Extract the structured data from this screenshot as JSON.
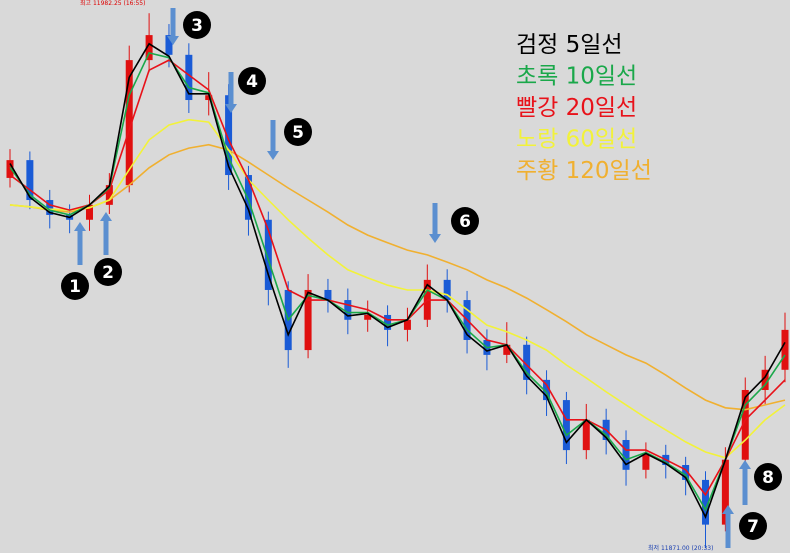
{
  "chart_data": {
    "type": "candlestick",
    "categories": [
      null,
      null,
      null,
      null,
      null,
      null,
      null,
      null,
      null,
      null,
      null,
      null,
      null,
      null,
      null,
      null,
      null,
      null,
      null,
      null,
      null,
      null,
      null,
      null,
      null,
      null,
      null,
      null,
      null,
      null,
      null,
      null,
      null,
      null,
      null,
      null,
      null,
      null,
      null,
      null
    ],
    "open": [
      11948.0,
      11951.7,
      11943.4,
      11940.3,
      11939.3,
      11942.4,
      11946.5,
      11972.5,
      11977.7,
      11973.6,
      11964.2,
      11965.2,
      11948.6,
      11939.3,
      11924.7,
      11912.2,
      11924.7,
      11922.6,
      11918.5,
      11919.5,
      11916.4,
      11918.5,
      11926.8,
      11922.6,
      11914.3,
      11911.2,
      11913.3,
      11906.0,
      11901.8,
      11891.4,
      11897.7,
      11893.5,
      11887.3,
      11890.4,
      11888.3,
      11885.2,
      11875.9,
      11889.4,
      11903.9,
      11908.1
    ],
    "high": [
      11954.0,
      11953.5,
      11945.5,
      11942.5,
      11944.5,
      11949.0,
      11975.5,
      11982.25,
      11980.0,
      11976.0,
      11970.0,
      11967.5,
      11950.5,
      11941.0,
      11926.5,
      11928.0,
      11927.0,
      11925.0,
      11922.5,
      11921.5,
      11921.0,
      11930.0,
      11929.0,
      11924.5,
      11916.5,
      11918.0,
      11915.0,
      11908.0,
      11903.5,
      11901.0,
      11900.0,
      11895.5,
      11893.0,
      11892.5,
      11890.0,
      11887.0,
      11892.0,
      11906.5,
      11911.0,
      11920.0
    ],
    "low": [
      11946.0,
      11941.5,
      11937.5,
      11936.5,
      11937.0,
      11940.5,
      11945.0,
      11970.0,
      11971.0,
      11961.5,
      11961.0,
      11945.5,
      11936.0,
      11921.5,
      11908.5,
      11910.5,
      11920.0,
      11915.5,
      11916.0,
      11913.0,
      11914.0,
      11917.0,
      11920.0,
      11911.5,
      11908.0,
      11909.5,
      11903.0,
      11898.5,
      11888.5,
      11889.5,
      11890.5,
      11884.0,
      11885.5,
      11885.5,
      11882.0,
      11871.0,
      11874.5,
      11887.5,
      11901.0,
      11905.5
    ],
    "close": [
      11951.7,
      11943.4,
      11940.3,
      11939.3,
      11942.4,
      11946.5,
      11972.5,
      11977.7,
      11973.6,
      11964.2,
      11965.2,
      11948.6,
      11939.3,
      11924.7,
      11912.2,
      11924.7,
      11922.6,
      11918.5,
      11919.5,
      11916.4,
      11918.5,
      11926.8,
      11922.6,
      11914.3,
      11911.2,
      11913.3,
      11906.0,
      11901.8,
      11891.4,
      11897.7,
      11893.5,
      11887.3,
      11890.4,
      11888.3,
      11885.2,
      11875.9,
      11889.4,
      11903.9,
      11908.1,
      11916.4
    ],
    "up_color": "#e01010",
    "down_color": "#1a5bd6",
    "series": [
      {
        "name": "검정 5일선",
        "color": "#000000",
        "values": [
          11951.0,
          11944.0,
          11940.8,
          11939.8,
          11942.4,
          11946.3,
          11968.9,
          11975.9,
          11973.3,
          11965.5,
          11965.5,
          11950.4,
          11941.4,
          11927.9,
          11915.4,
          11924.2,
          11922.6,
          11919.3,
          11919.8,
          11916.9,
          11918.5,
          11925.8,
          11922.6,
          11915.4,
          11912.0,
          11913.3,
          11906.8,
          11902.6,
          11893.0,
          11897.7,
          11894.0,
          11888.4,
          11890.7,
          11888.6,
          11885.7,
          11877.5,
          11889.4,
          11902.4,
          11906.6,
          11913.8
        ]
      },
      {
        "name": "초록 10일선",
        "color": "#1aa84a",
        "values": [
          11950.2,
          11944.5,
          11941.3,
          11940.3,
          11942.4,
          11946.0,
          11965.2,
          11974.0,
          11973.0,
          11966.8,
          11965.7,
          11952.2,
          11943.4,
          11931.0,
          11918.5,
          11923.6,
          11922.6,
          11920.0,
          11920.0,
          11917.4,
          11918.5,
          11924.7,
          11922.6,
          11916.4,
          11912.7,
          11913.3,
          11907.5,
          11903.4,
          11894.5,
          11897.7,
          11894.5,
          11889.4,
          11890.9,
          11888.8,
          11886.2,
          11879.0,
          11889.4,
          11900.8,
          11905.0,
          11911.2
        ]
      },
      {
        "name": "빨강 20일선",
        "color": "#e8121a",
        "values": [
          11948.6,
          11945.5,
          11942.4,
          11941.3,
          11942.4,
          11945.5,
          11958.0,
          11970.4,
          11972.5,
          11969.4,
          11966.3,
          11955.9,
          11947.6,
          11937.2,
          11924.7,
          11922.6,
          11922.6,
          11921.6,
          11920.6,
          11918.5,
          11918.5,
          11922.6,
          11922.6,
          11918.5,
          11914.3,
          11913.3,
          11909.1,
          11905.0,
          11897.7,
          11897.7,
          11895.6,
          11891.4,
          11891.4,
          11889.4,
          11887.3,
          11882.1,
          11889.4,
          11897.7,
          11901.8,
          11906.0
        ]
      },
      {
        "name": "노랑 60일선",
        "color": "#f2f23a",
        "values": [
          11942.4,
          11942.0,
          11941.5,
          11941.3,
          11941.8,
          11943.4,
          11949.7,
          11955.9,
          11959.0,
          11960.1,
          11959.6,
          11953.8,
          11947.6,
          11943.4,
          11939.3,
          11935.5,
          11932.0,
          11928.9,
          11927.2,
          11925.7,
          11924.7,
          11924.7,
          11923.7,
          11920.6,
          11917.4,
          11916.0,
          11914.3,
          11912.2,
          11909.1,
          11906.4,
          11903.5,
          11900.8,
          11898.1,
          11895.6,
          11893.1,
          11891.0,
          11889.8,
          11893.5,
          11897.7,
          11900.8
        ]
      },
      {
        "name": "주황 120일선",
        "color": "#f0b030",
        "values": [
          11942.4,
          11942.0,
          11941.3,
          11940.9,
          11941.8,
          11943.4,
          11946.5,
          11950.1,
          11952.8,
          11954.2,
          11954.9,
          11953.8,
          11951.3,
          11948.6,
          11945.9,
          11943.4,
          11940.9,
          11938.2,
          11936.1,
          11934.5,
          11933.0,
          11932.0,
          11930.5,
          11928.9,
          11926.8,
          11925.1,
          11923.0,
          11920.6,
          11918.1,
          11915.4,
          11913.3,
          11911.2,
          11909.5,
          11907.0,
          11904.3,
          11901.8,
          11900.2,
          11899.8,
          11900.8,
          11901.8
        ]
      }
    ],
    "ylim": [
      11870,
      11985
    ],
    "annotations": [
      "최고 11982.25 (16:55)",
      "최저 11871.00 (20:33)"
    ],
    "markers": [
      "1",
      "2",
      "3",
      "4",
      "5",
      "6",
      "7",
      "8"
    ]
  }
}
